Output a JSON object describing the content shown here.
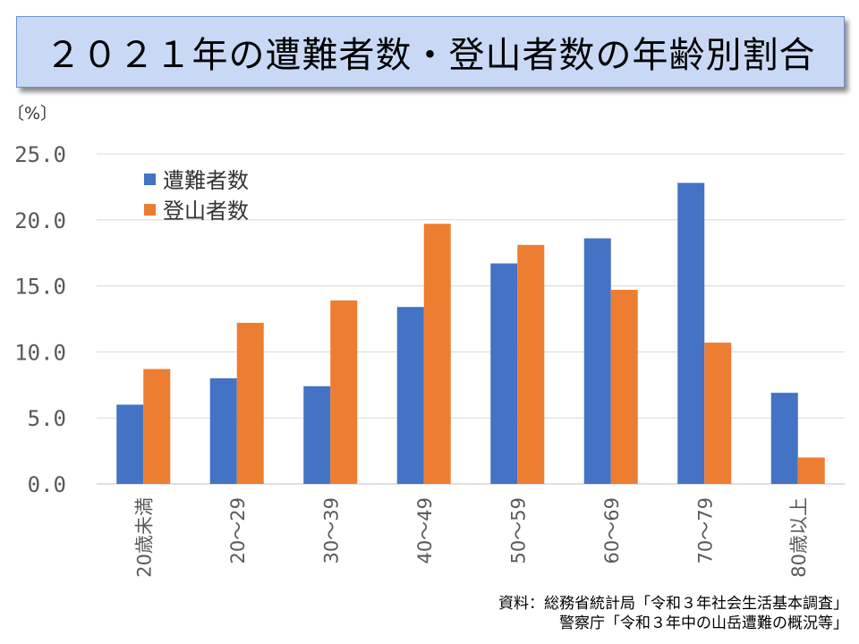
{
  "chart_data": {
    "type": "bar",
    "title": "２０２１年の遭難者数・登山者数の年齢別割合",
    "ylabel": "〔%〕",
    "xlabel": "",
    "ylim": [
      0,
      25
    ],
    "yticks": [
      "0.0",
      "5.0",
      "10.0",
      "15.0",
      "20.0",
      "25.0"
    ],
    "ytick_values": [
      0,
      5,
      10,
      15,
      20,
      25
    ],
    "grid": true,
    "legend_position": "top-left",
    "categories": [
      "20歳未満",
      "20～29",
      "30～39",
      "40～49",
      "50～59",
      "60～69",
      "70～79",
      "80歳以上"
    ],
    "series": [
      {
        "name": "遭難者数",
        "color": "#4472c4",
        "values": [
          6.0,
          8.0,
          7.4,
          13.4,
          16.7,
          18.6,
          22.8,
          6.9
        ]
      },
      {
        "name": "登山者数",
        "color": "#ed7d31",
        "values": [
          8.7,
          12.2,
          13.9,
          19.7,
          18.1,
          14.7,
          10.7,
          2.0
        ]
      }
    ]
  },
  "source": {
    "line1": "資料：総務省統計局「令和３年社会生活基本調査」",
    "line2": "警察庁「令和３年中の山岳遭難の概況等」"
  }
}
